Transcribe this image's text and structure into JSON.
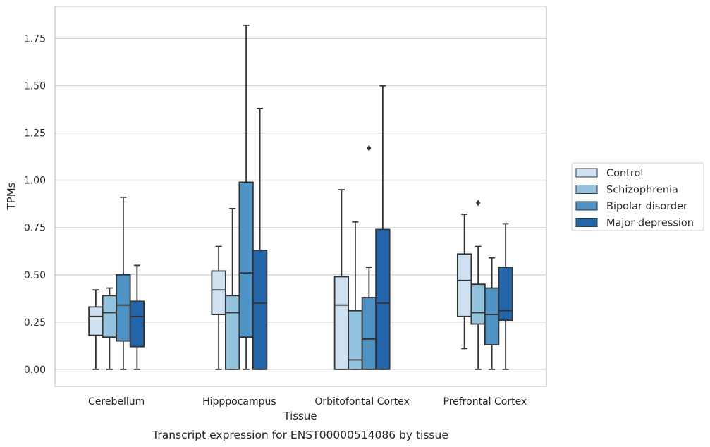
{
  "chart_data": {
    "type": "boxplot",
    "title": "",
    "caption": "Transcript expression for ENST00000514086 by tissue",
    "xlabel": "Tissue",
    "ylabel": "TPMs",
    "ylim": [
      -0.09,
      1.92
    ],
    "yticks": [
      0.0,
      0.25,
      0.5,
      0.75,
      1.0,
      1.25,
      1.5,
      1.75
    ],
    "ytick_labels": [
      "0.00",
      "0.25",
      "0.50",
      "0.75",
      "1.00",
      "1.25",
      "1.50",
      "1.75"
    ],
    "grid": "horizontal",
    "legend_position": "right",
    "categories": [
      "Cerebellum",
      "Hipppocampus",
      "Orbitofontal Cortex",
      "Prefrontal Cortex"
    ],
    "series": [
      {
        "name": "Control",
        "color": "#cfe0f1",
        "boxes": [
          {
            "whislo": 0.0,
            "q1": 0.18,
            "med": 0.28,
            "q3": 0.33,
            "whishi": 0.42,
            "fliers": []
          },
          {
            "whislo": 0.0,
            "q1": 0.29,
            "med": 0.42,
            "q3": 0.52,
            "whishi": 0.65,
            "fliers": []
          },
          {
            "whislo": 0.0,
            "q1": 0.0,
            "med": 0.34,
            "q3": 0.49,
            "whishi": 0.95,
            "fliers": []
          },
          {
            "whislo": 0.11,
            "q1": 0.28,
            "med": 0.47,
            "q3": 0.61,
            "whishi": 0.82,
            "fliers": []
          }
        ]
      },
      {
        "name": "Schizophrenia",
        "color": "#93c3df",
        "boxes": [
          {
            "whislo": 0.0,
            "q1": 0.17,
            "med": 0.3,
            "q3": 0.39,
            "whishi": 0.43,
            "fliers": []
          },
          {
            "whislo": 0.0,
            "q1": 0.0,
            "med": 0.3,
            "q3": 0.39,
            "whishi": 0.85,
            "fliers": []
          },
          {
            "whislo": 0.0,
            "q1": 0.0,
            "med": 0.05,
            "q3": 0.31,
            "whishi": 0.78,
            "fliers": []
          },
          {
            "whislo": 0.0,
            "q1": 0.24,
            "med": 0.3,
            "q3": 0.45,
            "whishi": 0.65,
            "fliers": [
              0.88
            ]
          }
        ]
      },
      {
        "name": "Bipolar disorder",
        "color": "#4e93c3",
        "boxes": [
          {
            "whislo": 0.0,
            "q1": 0.15,
            "med": 0.34,
            "q3": 0.5,
            "whishi": 0.91,
            "fliers": []
          },
          {
            "whislo": 0.0,
            "q1": 0.17,
            "med": 0.51,
            "q3": 0.99,
            "whishi": 1.82,
            "fliers": []
          },
          {
            "whislo": 0.0,
            "q1": 0.0,
            "med": 0.16,
            "q3": 0.38,
            "whishi": 0.54,
            "fliers": [
              1.17
            ]
          },
          {
            "whislo": 0.0,
            "q1": 0.13,
            "med": 0.29,
            "q3": 0.43,
            "whishi": 0.59,
            "fliers": []
          }
        ]
      },
      {
        "name": "Major depression",
        "color": "#2464a8",
        "boxes": [
          {
            "whislo": 0.0,
            "q1": 0.12,
            "med": 0.28,
            "q3": 0.36,
            "whishi": 0.55,
            "fliers": []
          },
          {
            "whislo": 0.0,
            "q1": 0.0,
            "med": 0.35,
            "q3": 0.63,
            "whishi": 1.38,
            "fliers": []
          },
          {
            "whislo": 0.0,
            "q1": 0.0,
            "med": 0.35,
            "q3": 0.74,
            "whishi": 1.5,
            "fliers": []
          },
          {
            "whislo": 0.0,
            "q1": 0.26,
            "med": 0.31,
            "q3": 0.54,
            "whishi": 0.77,
            "fliers": []
          }
        ]
      }
    ],
    "colors": {
      "frame": "#c8c8c8",
      "grid": "#cccccc",
      "line": "#333333",
      "text": "#262626"
    }
  }
}
